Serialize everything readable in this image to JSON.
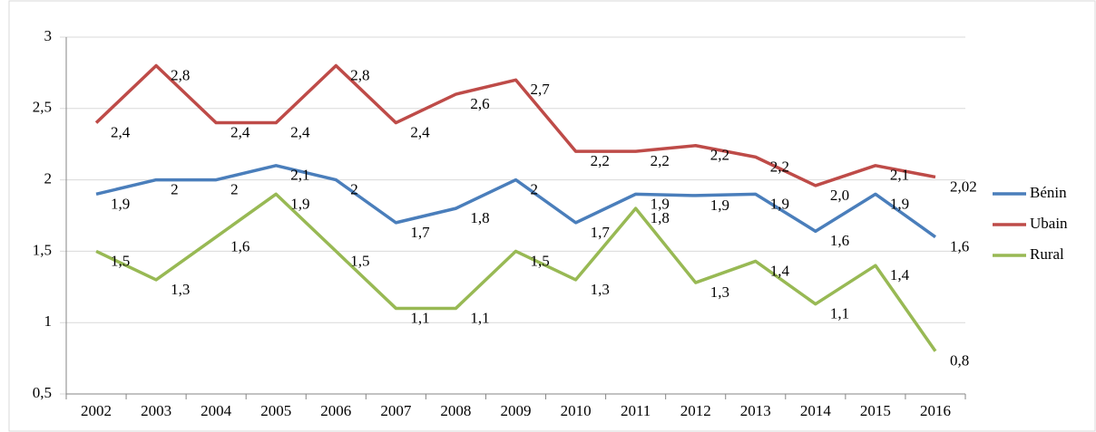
{
  "chart_data": {
    "type": "line",
    "categories": [
      "2002",
      "2003",
      "2004",
      "2005",
      "2006",
      "2007",
      "2008",
      "2009",
      "2010",
      "2011",
      "2012",
      "2013",
      "2014",
      "2015",
      "2016"
    ],
    "series": [
      {
        "name": "Bénin",
        "color": "#4a7ebb",
        "values": [
          1.9,
          2,
          2,
          2.1,
          2,
          1.7,
          1.8,
          2,
          1.7,
          1.9,
          1.89,
          1.9,
          1.64,
          1.9,
          1.6
        ],
        "value_labels": [
          "1,9",
          "2",
          "2",
          "2,1",
          "2",
          "1,7",
          "1,8",
          "2",
          "1,7",
          "1,9",
          "1,9",
          "1,9",
          "1,6",
          "1,9",
          "1,6"
        ]
      },
      {
        "name": "Ubain",
        "color": "#be4b48",
        "values": [
          2.4,
          2.8,
          2.4,
          2.4,
          2.8,
          2.4,
          2.6,
          2.7,
          2.2,
          2.2,
          2.24,
          2.16,
          1.96,
          2.1,
          2.02
        ],
        "value_labels": [
          "2,4",
          "2,8",
          "2,4",
          "2,4",
          "2,8",
          "2,4",
          "2,6",
          "2,7",
          "2,2",
          "2,2",
          "2,2",
          "2,2",
          "2,0",
          "2,1",
          "2,02"
        ]
      },
      {
        "name": "Rural",
        "color": "#98b954",
        "values": [
          1.5,
          1.3,
          1.6,
          1.9,
          1.5,
          1.1,
          1.1,
          1.5,
          1.3,
          1.8,
          1.28,
          1.43,
          1.13,
          1.4,
          0.8
        ],
        "value_labels": [
          "1,5",
          "1,3",
          "1,6",
          "1,9",
          "1,5",
          "1,1",
          "1,1",
          "1,5",
          "1,3",
          "1,8",
          "1,3",
          "1,4",
          "1,1",
          "1,4",
          "0,8"
        ]
      }
    ],
    "ylim": [
      0.5,
      3
    ],
    "yticks": [
      {
        "value": 0.5,
        "label": "0,5"
      },
      1,
      {
        "value": 1.5,
        "label": "1,5"
      },
      2,
      {
        "value": 2.5,
        "label": "2,5"
      },
      3
    ],
    "grid": true,
    "legend": "right"
  }
}
